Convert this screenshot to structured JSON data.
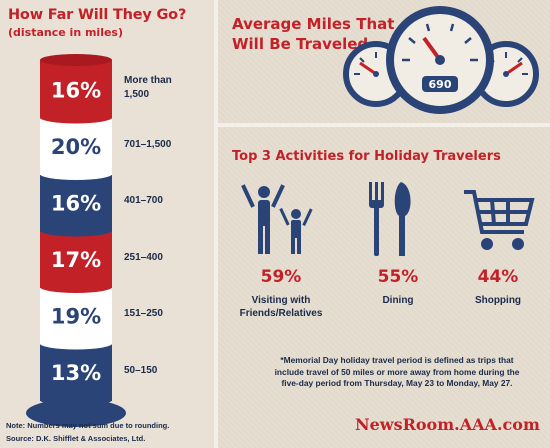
{
  "left": {
    "title": "How Far Will They Go?",
    "subtitle": "(distance in miles)",
    "note": "Note: Numbers may not sum due to rounding.",
    "source": "Source: D.K. Shifflet & Associates, Ltd."
  },
  "chart_data": {
    "type": "bar",
    "title": "How Far Will They Go?",
    "subtitle": "(distance in miles)",
    "categories": [
      "More than 1,500",
      "701–1,500",
      "401–700",
      "251–400",
      "151–250",
      "50–150"
    ],
    "values": [
      16,
      20,
      16,
      17,
      19,
      13
    ],
    "labels": [
      "16%",
      "20%",
      "16%",
      "17%",
      "19%",
      "13%"
    ],
    "unit": "%",
    "colors": [
      "#c32128",
      "#ffffff",
      "#2a4478",
      "#c32128",
      "#ffffff",
      "#2a4478"
    ],
    "text_colors": [
      "#ffffff",
      "#2a4478",
      "#ffffff",
      "#ffffff",
      "#2a4478",
      "#ffffff"
    ]
  },
  "gauge": {
    "title": "Average Miles That Will Be Traveled",
    "title_line1": "Average Miles That",
    "title_line2": "Will Be Traveled",
    "value": "690"
  },
  "activities": {
    "title": "Top 3 Activities for Holiday Travelers",
    "items": [
      {
        "pct": "59%",
        "label_line1": "Visiting with",
        "label_line2": "Friends/Relatives",
        "icon": "family-icon"
      },
      {
        "pct": "55%",
        "label_line1": "Dining",
        "label_line2": "",
        "icon": "utensils-icon"
      },
      {
        "pct": "44%",
        "label_line1": "Shopping",
        "label_line2": "",
        "icon": "shopping-cart-icon"
      }
    ]
  },
  "footnote": {
    "line1": "*Memorial Day holiday travel period is defined as trips that",
    "line2": "include travel of 50 miles or more away from home during the",
    "line3": "five-day period from Thursday, May 23 to Monday, May 27."
  },
  "brand": "NewsRoom.AAA.com",
  "colors": {
    "accent_red": "#c32128",
    "navy": "#2a4478",
    "background": "#e6ddd0"
  }
}
